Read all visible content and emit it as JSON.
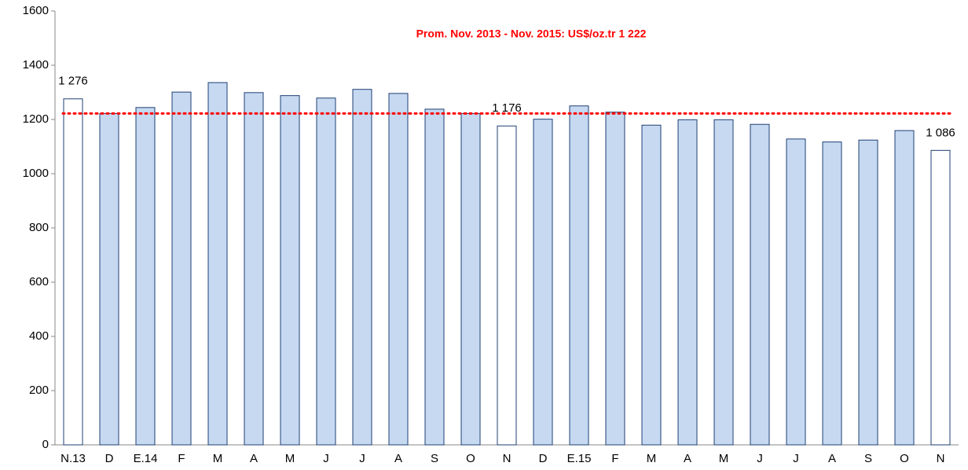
{
  "chart_data": {
    "type": "bar",
    "categories": [
      "N.13",
      "D",
      "E.14",
      "F",
      "M",
      "A",
      "M",
      "J",
      "J",
      "A",
      "S",
      "O",
      "N",
      "D",
      "E.15",
      "F",
      "M",
      "A",
      "M",
      "J",
      "J",
      "A",
      "S",
      "O",
      "N"
    ],
    "values": [
      1276,
      1222,
      1244,
      1301,
      1336,
      1299,
      1288,
      1279,
      1311,
      1296,
      1238,
      1222,
      1176,
      1201,
      1250,
      1227,
      1179,
      1199,
      1199,
      1182,
      1128,
      1117,
      1124,
      1159,
      1086
    ],
    "value_labels": [
      "1 276",
      null,
      null,
      null,
      null,
      null,
      null,
      null,
      null,
      null,
      null,
      null,
      "1 176",
      null,
      null,
      null,
      null,
      null,
      null,
      null,
      null,
      null,
      null,
      null,
      "1 086"
    ],
    "colors": [
      "#ffffff",
      "#c6d9f1",
      "#c6d9f1",
      "#c6d9f1",
      "#c6d9f1",
      "#c6d9f1",
      "#c6d9f1",
      "#c6d9f1",
      "#c6d9f1",
      "#c6d9f1",
      "#c6d9f1",
      "#c6d9f1",
      "#ffffff",
      "#c6d9f1",
      "#c6d9f1",
      "#c6d9f1",
      "#c6d9f1",
      "#c6d9f1",
      "#c6d9f1",
      "#c6d9f1",
      "#c6d9f1",
      "#c6d9f1",
      "#c6d9f1",
      "#c6d9f1",
      "#ffffff"
    ],
    "edge_color": "#1f3f73",
    "reference_line": {
      "value": 1222,
      "color": "#ff0000"
    },
    "annotation": "Prom. Nov. 2013 - Nov. 2015: US$/oz.tr 1 222",
    "ylim": [
      0,
      1600
    ],
    "yticks": [
      0,
      200,
      400,
      600,
      800,
      1000,
      1200,
      1400,
      1600
    ]
  }
}
